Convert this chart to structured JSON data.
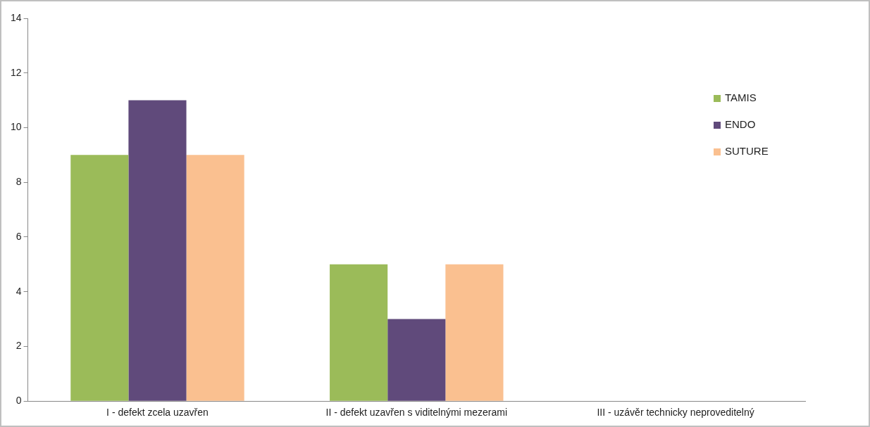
{
  "chart_data": {
    "type": "bar",
    "categories": [
      "I - defekt zcela uzavřen",
      "II - defekt uzavřen s viditelnými mezerami",
      "III - uzávěr technicky neproveditelný"
    ],
    "series": [
      {
        "name": "TAMIS",
        "color": "#9bbb59",
        "values": [
          9,
          5,
          0
        ]
      },
      {
        "name": "ENDO",
        "color": "#604a7b",
        "values": [
          11,
          3,
          0
        ]
      },
      {
        "name": "SUTURE",
        "color": "#fac090",
        "values": [
          9,
          5,
          0
        ]
      }
    ],
    "ylim": [
      0,
      14
    ],
    "yticks": [
      0,
      2,
      4,
      6,
      8,
      10,
      12,
      14
    ],
    "grid": false,
    "legend": "top right"
  }
}
